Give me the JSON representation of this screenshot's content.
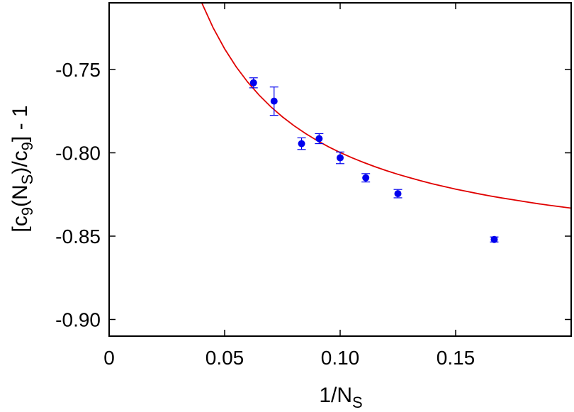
{
  "chart_data": {
    "type": "scatter",
    "xlabel": "1/N_S",
    "ylabel": "[c_9(N_S)/c_9] - 1",
    "xlim": [
      0,
      0.2
    ],
    "ylim": [
      -0.91,
      -0.71
    ],
    "x_ticks": [
      0,
      0.05,
      0.1,
      0.15
    ],
    "x_tick_labels": [
      "0",
      "0.05",
      "0.10",
      "0.15"
    ],
    "y_ticks": [
      -0.75,
      -0.8,
      -0.85,
      -0.9
    ],
    "y_tick_labels": [
      "-0.75",
      "-0.80",
      "-0.85",
      "-0.90"
    ],
    "grid": false,
    "legend": "none",
    "series": [
      {
        "kind": "points_with_errorbars",
        "color": "#0000ee",
        "x": [
          0.0625,
          0.0714,
          0.0833,
          0.0909,
          0.1,
          0.1111,
          0.125,
          0.1667
        ],
        "y": [
          -0.758,
          -0.769,
          -0.7945,
          -0.7915,
          -0.803,
          -0.815,
          -0.8245,
          -0.852
        ],
        "yerr": [
          0.003,
          0.0085,
          0.0035,
          0.003,
          0.0035,
          0.0025,
          0.0025,
          0.0015
        ]
      },
      {
        "kind": "fit_curve",
        "color": "#e00000",
        "x": [
          0.04,
          0.045,
          0.05,
          0.055,
          0.06,
          0.065,
          0.07,
          0.075,
          0.08,
          0.085,
          0.09,
          0.095,
          0.1,
          0.105,
          0.11,
          0.115,
          0.12,
          0.125,
          0.13,
          0.135,
          0.14,
          0.145,
          0.15,
          0.155,
          0.16,
          0.165,
          0.17,
          0.175,
          0.18,
          0.185,
          0.19,
          0.195,
          0.2
        ],
        "y": [
          -0.7097,
          -0.7249,
          -0.7376,
          -0.7484,
          -0.7576,
          -0.7655,
          -0.7724,
          -0.7784,
          -0.7837,
          -0.7884,
          -0.7926,
          -0.7964,
          -0.7998,
          -0.8029,
          -0.8057,
          -0.8083,
          -0.8107,
          -0.8129,
          -0.8149,
          -0.8168,
          -0.8186,
          -0.8202,
          -0.8218,
          -0.8232,
          -0.8246,
          -0.8259,
          -0.8271,
          -0.8282,
          -0.8293,
          -0.8304,
          -0.8314,
          -0.8323,
          -0.8332
        ]
      }
    ]
  }
}
